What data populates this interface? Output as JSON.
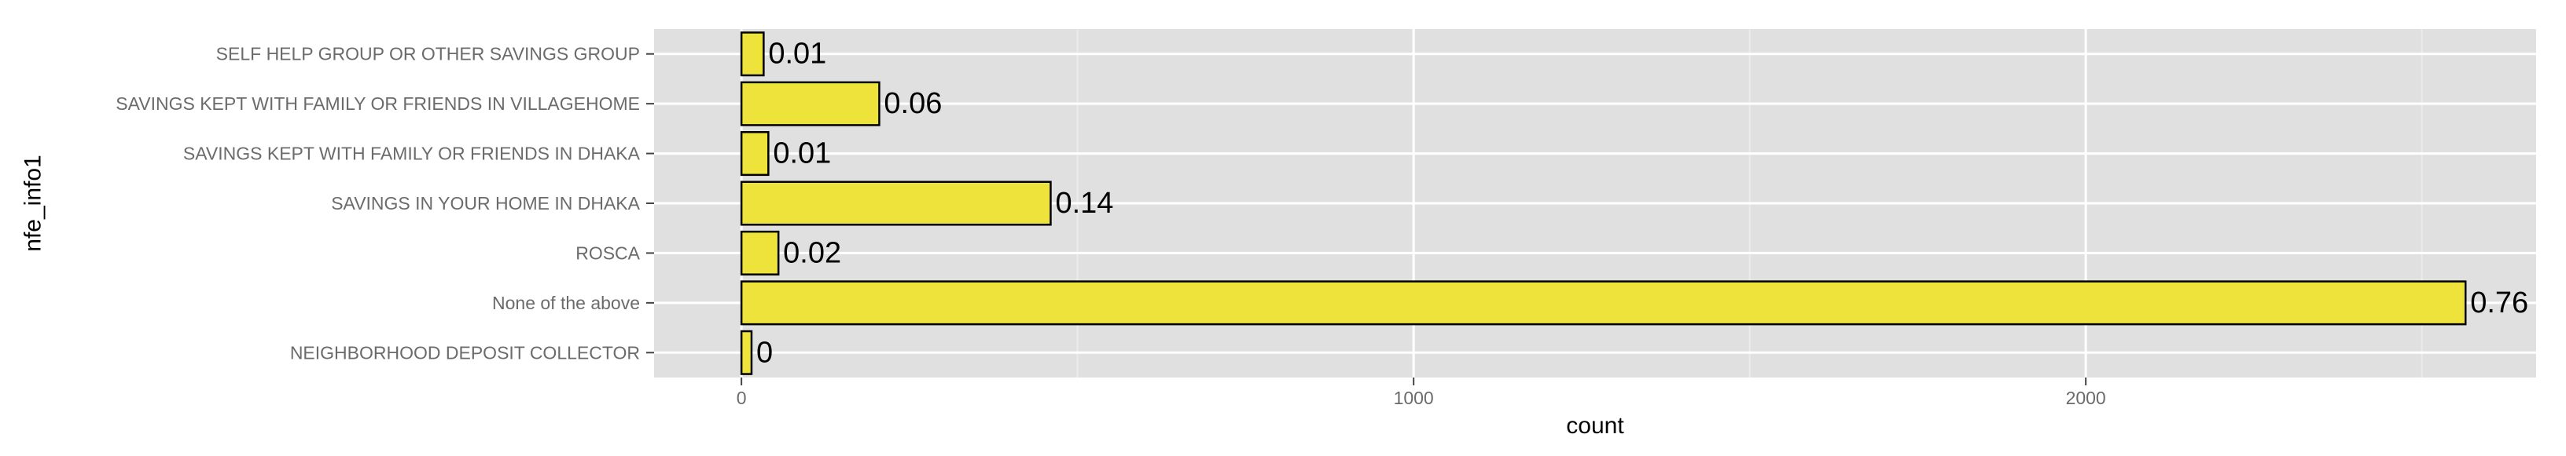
{
  "chart_data": {
    "type": "bar",
    "orientation": "horizontal",
    "categories": [
      "SELF HELP GROUP OR OTHER SAVINGS GROUP",
      "SAVINGS KEPT WITH FAMILY OR FRIENDS IN VILLAGEHOME",
      "SAVINGS KEPT WITH FAMILY OR FRIENDS IN DHAKA",
      "SAVINGS IN YOUR HOME IN DHAKA",
      "ROSCA",
      "None of the above",
      "NEIGHBORHOOD DEPOSIT COLLECTOR"
    ],
    "values": [
      33,
      205,
      40,
      460,
      55,
      2565,
      15
    ],
    "data_labels": [
      "0.01",
      "0.06",
      "0.01",
      "0.14",
      "0.02",
      "0.76",
      "0"
    ],
    "xlabel": "count",
    "ylabel": "nfe_info1",
    "xlim": [
      -130,
      2670
    ],
    "x_ticks": [
      0,
      1000,
      2000
    ],
    "x_tick_labels": [
      "0",
      "1000",
      "2000"
    ],
    "grid": true,
    "colors": {
      "bar_fill": "#ede33a",
      "bar_stroke": "#000000",
      "panel_bg": "#e0e0e0",
      "grid_major": "#ffffff",
      "grid_minor": "#ebebeb",
      "tick_text": "#6b6b6b",
      "title_text": "#000000"
    }
  }
}
